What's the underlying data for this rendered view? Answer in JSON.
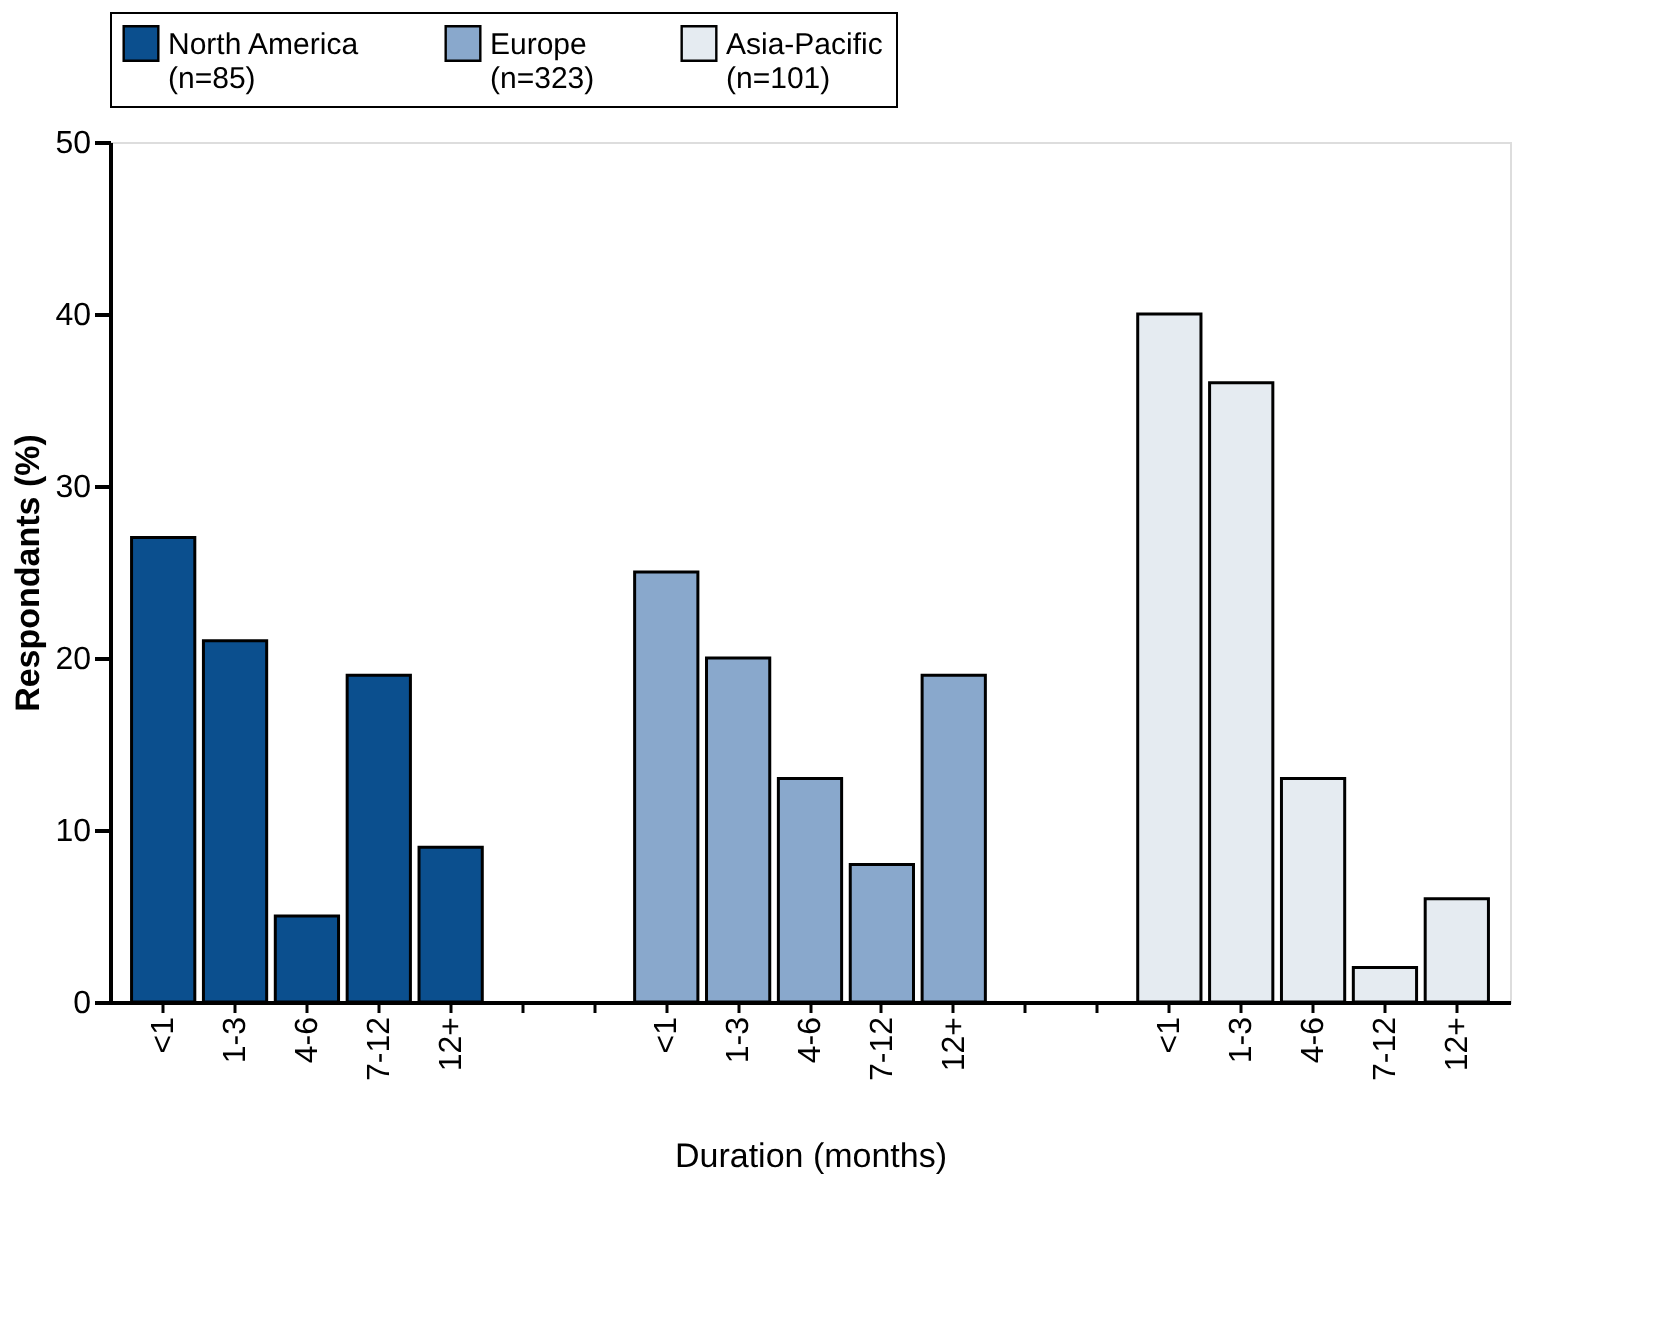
{
  "chart_data": {
    "type": "bar",
    "xlabel": "Duration (months)",
    "ylabel": "Respondants (%)",
    "categories": [
      "<1",
      "1-3",
      "4-6",
      "7-12",
      "12+",
      null,
      null,
      "<1",
      "1-3",
      "4-6",
      "7-12",
      "12+",
      null,
      null,
      "<1",
      "1-3",
      "4-6",
      "7-12",
      "12+"
    ],
    "series": [
      {
        "name": "North America (n=85)",
        "color": "#0b4f8e",
        "values": [
          27,
          21,
          5,
          19,
          9,
          null,
          null,
          null,
          null,
          null,
          null,
          null,
          null,
          null,
          null,
          null,
          null,
          null,
          null
        ]
      },
      {
        "name": "Europe (n=323)",
        "color": "#89a8cc",
        "values": [
          null,
          null,
          null,
          null,
          null,
          null,
          null,
          25,
          20,
          13,
          8,
          19,
          null,
          null,
          null,
          null,
          null,
          null,
          null
        ]
      },
      {
        "name": "Asia-Pacific (n=101)",
        "color": "#e5ebf1",
        "values": [
          null,
          null,
          null,
          null,
          null,
          null,
          null,
          null,
          null,
          null,
          null,
          null,
          null,
          null,
          40,
          36,
          13,
          2,
          6
        ]
      }
    ],
    "ylim": [
      0,
      50
    ],
    "yticks": [
      0,
      10,
      20,
      30,
      40,
      50
    ],
    "grid": false,
    "legend": "top"
  }
}
